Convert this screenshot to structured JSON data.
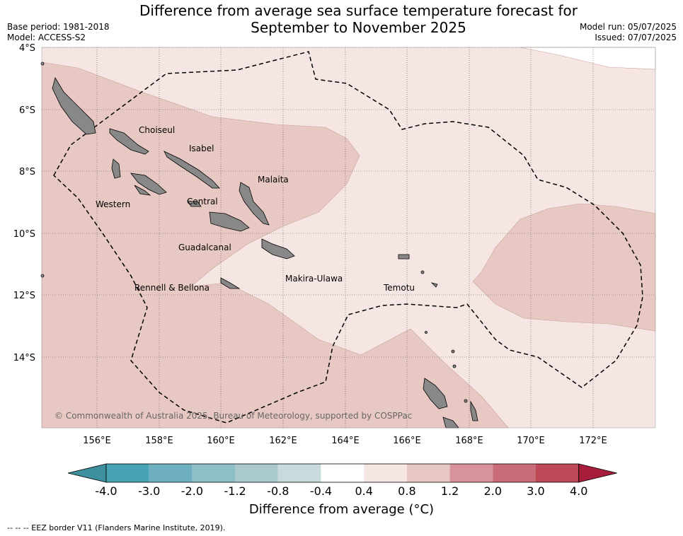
{
  "title_line1": "Difference from average sea surface temperature forecast for",
  "title_line2": "September to November 2025",
  "base_period": "Base period: 1981-2018",
  "model": "Model: ACCESS-S2",
  "model_run": "Model run: 05/07/2025",
  "issued": "Issued: 07/07/2025",
  "lat_ticks": [
    "4°S",
    "6°S",
    "8°S",
    "10°S",
    "12°S",
    "14°S"
  ],
  "lon_ticks": [
    "156°E",
    "158°E",
    "160°E",
    "162°E",
    "164°E",
    "166°E",
    "168°E",
    "170°E",
    "172°E"
  ],
  "provinces": [
    "Choiseul",
    "Isabel",
    "Malaita",
    "Western",
    "Central",
    "Guadalcanal",
    "Makira-Ulawa",
    "Rennell & Bellona",
    "Temotu"
  ],
  "copyright": "© Commonwealth of Australia 2025, Bureau of Meteorology, supported by COSPPac",
  "colorbar": {
    "labels": [
      "-4.0",
      "-3.0",
      "-2.0",
      "-1.2",
      "-0.8",
      "-0.4",
      "0.4",
      "0.8",
      "1.2",
      "2.0",
      "3.0",
      "4.0"
    ],
    "colors": [
      "#3e909e",
      "#47a4b4",
      "#6eb0bf",
      "#8ebec7",
      "#a9c9cd",
      "#c9dadd",
      "#ffffff",
      "#f5e6e3",
      "#e8c8c2",
      "#d8939a",
      "#ca6c78",
      "#be4956",
      "#a81d3a"
    ],
    "title": "Difference from average (°C)"
  },
  "footnote": "--  --  -- EEZ border V11 (Flanders Marine Institute, 2019).",
  "map_colors": {
    "light_band": "#f5e6e3",
    "medium_band": "#e8c8c2",
    "land": "#888888"
  }
}
